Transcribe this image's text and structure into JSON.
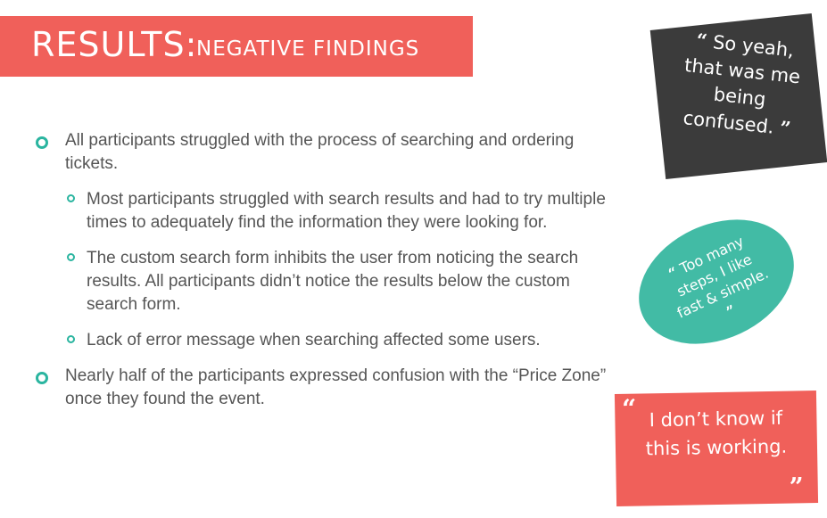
{
  "title": {
    "main": "RESULTS:",
    "sub": "NEGATIVE FINDINGS"
  },
  "bullets": [
    {
      "text": "All participants struggled with the process of searching and ordering tickets.",
      "subs": [
        "Most participants struggled with search results and had to try multiple times to adequately find the information they were looking for.",
        "The custom search form inhibits the user from noticing the search results. All participants didn’t notice the results below the custom search form.",
        "Lack of error message when searching affected some users."
      ]
    },
    {
      "text": "Nearly half of the participants expressed confusion with the “Price Zone” once they found the event.",
      "subs": []
    }
  ],
  "quotes": {
    "q1": {
      "text": "So yeah, that was me being confused."
    },
    "q2": {
      "text": "Too many steps, I like fast & simple."
    },
    "q3": {
      "text": "I don’t know if this is working."
    }
  },
  "colors": {
    "accent_red": "#f0605a",
    "teal": "#2bb5a0",
    "dark": "#3b3b3b"
  }
}
